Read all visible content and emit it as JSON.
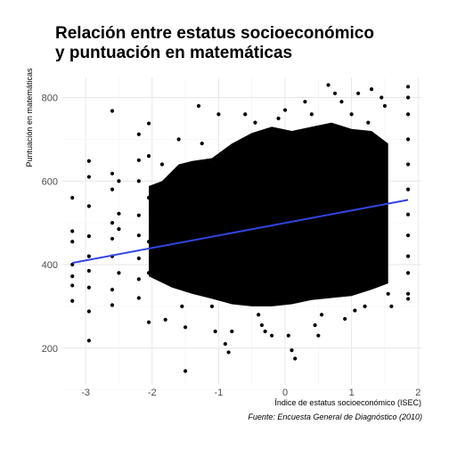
{
  "chart_data": {
    "type": "scatter",
    "title_lines": [
      "Relación entre estatus socioeconómico",
      "y puntuación en matemáticas"
    ],
    "xlabel": "Índice de estatus socioeconómico (ISEC)",
    "ylabel": "Puntuación en matemáticas",
    "caption": "Fuente: Encuesta General de Diagnóstico (2010)",
    "xlim": [
      -3.35,
      2.05
    ],
    "ylim": [
      112,
      848
    ],
    "x_ticks": [
      -3,
      -2,
      -1,
      0,
      1,
      2
    ],
    "x_tick_labels": [
      "-3",
      "-2",
      "-1",
      "0",
      "1",
      "2"
    ],
    "y_ticks": [
      200,
      400,
      600,
      800
    ],
    "y_tick_labels": [
      "200",
      "400",
      "600",
      "800"
    ],
    "grid": true,
    "point_color": "#000000",
    "trend_line": {
      "color": "#3344e0",
      "x": [
        -3.2,
        1.85
      ],
      "y": [
        404,
        555
      ]
    },
    "points": [
      [
        -3.2,
        560
      ],
      [
        -3.2,
        480
      ],
      [
        -3.2,
        455
      ],
      [
        -3.2,
        400
      ],
      [
        -3.2,
        372
      ],
      [
        -3.2,
        350
      ],
      [
        -3.2,
        313
      ],
      [
        -2.95,
        648
      ],
      [
        -2.95,
        610
      ],
      [
        -2.95,
        540
      ],
      [
        -2.95,
        468
      ],
      [
        -2.95,
        420
      ],
      [
        -2.95,
        385
      ],
      [
        -2.95,
        345
      ],
      [
        -2.95,
        288
      ],
      [
        -2.95,
        218
      ],
      [
        -2.6,
        768
      ],
      [
        -2.6,
        618
      ],
      [
        -2.6,
        580
      ],
      [
        -2.6,
        500
      ],
      [
        -2.6,
        462
      ],
      [
        -2.6,
        420
      ],
      [
        -2.6,
        340
      ],
      [
        -2.6,
        303
      ],
      [
        -2.5,
        600
      ],
      [
        -2.5,
        522
      ],
      [
        -2.5,
        485
      ],
      [
        -2.5,
        380
      ],
      [
        -2.2,
        712
      ],
      [
        -2.2,
        650
      ],
      [
        -2.2,
        600
      ],
      [
        -2.2,
        518
      ],
      [
        -2.2,
        470
      ],
      [
        -2.2,
        415
      ],
      [
        -2.2,
        365
      ],
      [
        -2.2,
        320
      ],
      [
        -2.05,
        738
      ],
      [
        -2.05,
        660
      ],
      [
        -2.05,
        560
      ],
      [
        -2.05,
        455
      ],
      [
        -2.05,
        380
      ],
      [
        -2.05,
        262
      ],
      [
        -1.85,
        640
      ],
      [
        -1.85,
        585
      ],
      [
        -1.8,
        520
      ],
      [
        -1.8,
        450
      ],
      [
        -1.8,
        360
      ],
      [
        -1.8,
        268
      ],
      [
        -1.6,
        700
      ],
      [
        -1.6,
        560
      ],
      [
        -1.55,
        420
      ],
      [
        -1.55,
        300
      ],
      [
        -1.5,
        145
      ],
      [
        -1.5,
        250
      ],
      [
        -1.3,
        780
      ],
      [
        -1.25,
        690
      ],
      [
        -1.2,
        620
      ],
      [
        -1.2,
        520
      ],
      [
        -1.15,
        380
      ],
      [
        -1.1,
        300
      ],
      [
        -1.05,
        240
      ],
      [
        -1.0,
        760
      ],
      [
        -0.9,
        660
      ],
      [
        -0.9,
        210
      ],
      [
        -0.85,
        190
      ],
      [
        -0.8,
        240
      ],
      [
        -0.75,
        640
      ],
      [
        -0.6,
        760
      ],
      [
        -0.55,
        700
      ],
      [
        -0.45,
        740
      ],
      [
        -0.4,
        280
      ],
      [
        -0.35,
        255
      ],
      [
        -0.3,
        240
      ],
      [
        -0.2,
        230
      ],
      [
        -0.1,
        750
      ],
      [
        0.0,
        770
      ],
      [
        0.05,
        230
      ],
      [
        0.1,
        195
      ],
      [
        0.15,
        175
      ],
      [
        0.3,
        790
      ],
      [
        0.4,
        760
      ],
      [
        0.45,
        255
      ],
      [
        0.5,
        230
      ],
      [
        0.55,
        280
      ],
      [
        0.65,
        830
      ],
      [
        0.75,
        810
      ],
      [
        0.85,
        790
      ],
      [
        0.9,
        270
      ],
      [
        1.0,
        760
      ],
      [
        1.05,
        290
      ],
      [
        1.1,
        810
      ],
      [
        1.2,
        300
      ],
      [
        1.25,
        740
      ],
      [
        1.3,
        820
      ],
      [
        1.45,
        800
      ],
      [
        1.5,
        780
      ],
      [
        1.55,
        330
      ],
      [
        1.6,
        300
      ],
      [
        1.85,
        826
      ],
      [
        1.85,
        800
      ],
      [
        1.85,
        760
      ],
      [
        1.85,
        700
      ],
      [
        1.85,
        640
      ],
      [
        1.85,
        580
      ],
      [
        1.85,
        520
      ],
      [
        1.85,
        470
      ],
      [
        1.85,
        420
      ],
      [
        1.85,
        380
      ],
      [
        1.85,
        330
      ],
      [
        1.85,
        318
      ]
    ]
  }
}
